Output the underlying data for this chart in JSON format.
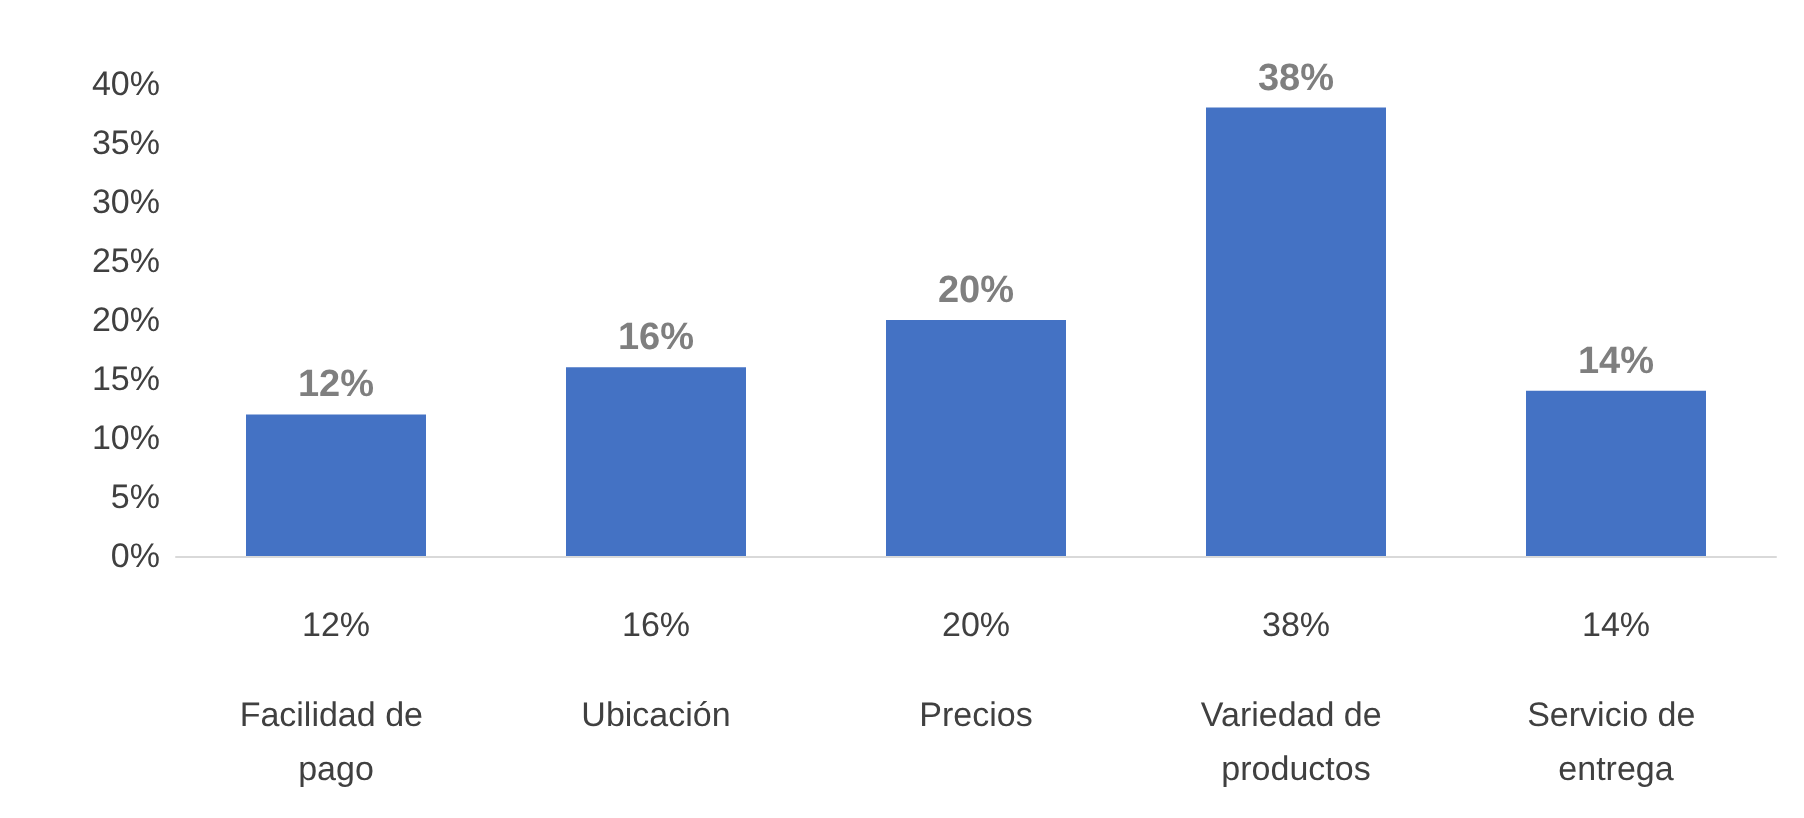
{
  "chart_data": {
    "type": "bar",
    "categories": [
      "Facilidad de pago",
      "Ubicación",
      "Precios",
      "Variedad de productos",
      "Servicio de entrega"
    ],
    "values": [
      12,
      16,
      20,
      38,
      14
    ],
    "value_labels": [
      "12%",
      "16%",
      "20%",
      "38%",
      "14%"
    ],
    "color": "#4472c4",
    "ylim": [
      0,
      40
    ],
    "yticks": [
      {
        "value": 0,
        "label": "0%"
      },
      {
        "value": 5,
        "label": "5%"
      },
      {
        "value": 10,
        "label": "10%"
      },
      {
        "value": 15,
        "label": "15%"
      },
      {
        "value": 20,
        "label": "20%"
      },
      {
        "value": 25,
        "label": "25%"
      },
      {
        "value": 30,
        "label": "30%"
      },
      {
        "value": 35,
        "label": "35%"
      },
      {
        "value": 40,
        "label": "40%"
      }
    ],
    "grid": false
  }
}
